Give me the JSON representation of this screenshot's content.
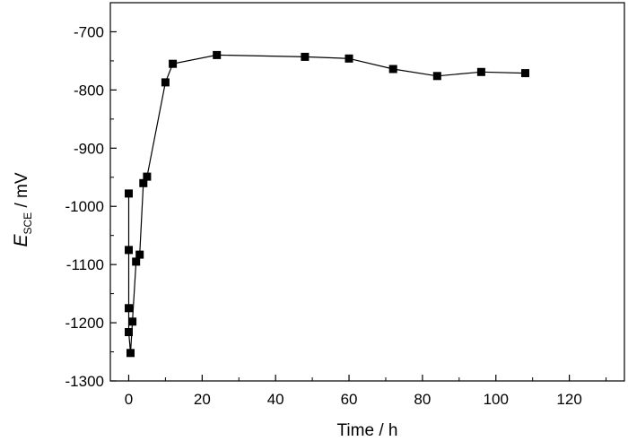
{
  "chart_data": {
    "type": "line",
    "title": "",
    "xlabel": "Time / h",
    "ylabel": {
      "symbol": "E",
      "subscript": "SCE",
      "unit": " / mV"
    },
    "xlim": [
      -5,
      135
    ],
    "ylim": [
      -1300,
      -650
    ],
    "xticks": [
      0,
      20,
      40,
      60,
      80,
      100,
      120
    ],
    "yticks": [
      -700,
      -800,
      -900,
      -1000,
      -1100,
      -1200,
      -1300
    ],
    "grid": false,
    "series": [
      {
        "marker": "square",
        "color": "#000000",
        "points": [
          {
            "x": 0,
            "y": -978
          },
          {
            "x": 0,
            "y": -1075
          },
          {
            "x": 0,
            "y": -1175
          },
          {
            "x": 0,
            "y": -1216
          },
          {
            "x": 0.5,
            "y": -1252
          },
          {
            "x": 1,
            "y": -1198
          },
          {
            "x": 2,
            "y": -1095
          },
          {
            "x": 3,
            "y": -1083
          },
          {
            "x": 4,
            "y": -960
          },
          {
            "x": 5,
            "y": -949
          },
          {
            "x": 10,
            "y": -787
          },
          {
            "x": 12,
            "y": -755
          },
          {
            "x": 24,
            "y": -740
          },
          {
            "x": 48,
            "y": -743
          },
          {
            "x": 60,
            "y": -746
          },
          {
            "x": 72,
            "y": -764
          },
          {
            "x": 84,
            "y": -776
          },
          {
            "x": 96,
            "y": -769
          },
          {
            "x": 108,
            "y": -771
          }
        ]
      }
    ]
  }
}
